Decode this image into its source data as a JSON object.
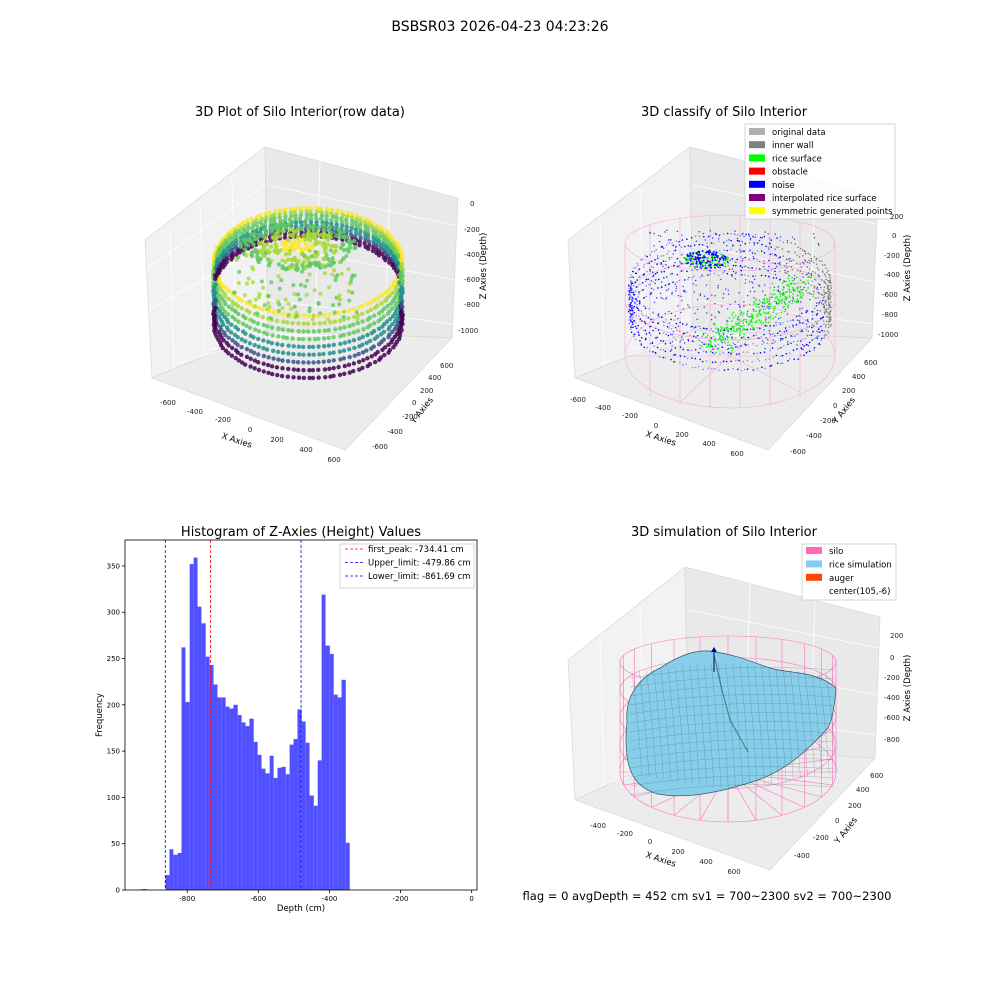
{
  "suptitle": "BSBSR03 2026-04-23 04:23:26",
  "panel1": {
    "title": "3D Plot of Silo Interior(row data)",
    "xlabel": "X Axies",
    "ylabel": "Y Axies",
    "zlabel": "Z Axies (Depth)",
    "xticks": [
      "-600",
      "-400",
      "-200",
      "0",
      "200",
      "400",
      "600"
    ],
    "yticks": [
      "-600",
      "-400",
      "-200",
      "0",
      "200",
      "400",
      "600"
    ],
    "zticks": [
      "0",
      "-200",
      "-400",
      "-600",
      "-800",
      "-1000"
    ]
  },
  "panel2": {
    "title": "3D classify of Silo Interior",
    "xlabel": "X Axies",
    "ylabel": "Y Axies",
    "zlabel": "Z Axies (Depth)",
    "xticks": [
      "-600",
      "-400",
      "-200",
      "0",
      "200",
      "400",
      "600"
    ],
    "yticks": [
      "-600",
      "-400",
      "-200",
      "0",
      "200",
      "400",
      "600"
    ],
    "zticks": [
      "200",
      "0",
      "-200",
      "-400",
      "-600",
      "-800",
      "-1000"
    ],
    "legend": [
      {
        "label": "original data",
        "color": "#b0b0b0"
      },
      {
        "label": "inner wall",
        "color": "#808080"
      },
      {
        "label": "rice surface",
        "color": "#00ff00"
      },
      {
        "label": "obstacle",
        "color": "#ff0000"
      },
      {
        "label": "noise",
        "color": "#0000ff"
      },
      {
        "label": "interpolated rice surface",
        "color": "#800080"
      },
      {
        "label": "symmetric generated points",
        "color": "#ffff00"
      }
    ]
  },
  "panel4": {
    "title": "3D simulation of Silo Interior",
    "xlabel": "X Axies",
    "ylabel": "Y Axies",
    "zlabel": "Z Axies (Depth)",
    "xticks": [
      "-400",
      "-200",
      "0",
      "200",
      "400",
      "600"
    ],
    "yticks": [
      "-400",
      "-200",
      "0",
      "200",
      "400",
      "600"
    ],
    "zticks": [
      "200",
      "0",
      "-200",
      "-400",
      "-600",
      "-800"
    ],
    "legend": [
      {
        "label": "silo",
        "color": "#ff69b4"
      },
      {
        "label": "rice simulation",
        "color": "#87ceeb"
      },
      {
        "label": "auger",
        "color": "#ff4500"
      },
      {
        "label": "center(105,-6)",
        "color": ""
      }
    ]
  },
  "flag_text": "flag = 0     avgDepth = 452 cm  sv1 = 700~2300  sv2 = 700~2300",
  "chart_data": {
    "type": "bar",
    "title": "Histogram of Z-Axies (Height) Values",
    "xlabel": "Depth (cm)",
    "ylabel": "Frequency",
    "bar_color": "#5050ff",
    "xlim": [
      -975,
      15
    ],
    "ylim": [
      0,
      378
    ],
    "xticks": [
      -800,
      -600,
      -400,
      -200,
      0
    ],
    "yticks": [
      0,
      50,
      100,
      150,
      200,
      250,
      300,
      350
    ],
    "bins": [
      {
        "x0": -928,
        "x1": -913,
        "count": 1
      },
      {
        "x0": -861,
        "x1": -850,
        "count": 16
      },
      {
        "x0": -850,
        "x1": -839,
        "count": 44
      },
      {
        "x0": -839,
        "x1": -827,
        "count": 38
      },
      {
        "x0": -827,
        "x1": -816,
        "count": 40
      },
      {
        "x0": -816,
        "x1": -805,
        "count": 262
      },
      {
        "x0": -805,
        "x1": -793,
        "count": 203
      },
      {
        "x0": -793,
        "x1": -782,
        "count": 352
      },
      {
        "x0": -782,
        "x1": -771,
        "count": 359
      },
      {
        "x0": -771,
        "x1": -760,
        "count": 306
      },
      {
        "x0": -760,
        "x1": -748,
        "count": 288
      },
      {
        "x0": -748,
        "x1": -737,
        "count": 252
      },
      {
        "x0": -737,
        "x1": -726,
        "count": 243
      },
      {
        "x0": -726,
        "x1": -715,
        "count": 222
      },
      {
        "x0": -715,
        "x1": -703,
        "count": 208
      },
      {
        "x0": -703,
        "x1": -692,
        "count": 208
      },
      {
        "x0": -692,
        "x1": -681,
        "count": 198
      },
      {
        "x0": -681,
        "x1": -670,
        "count": 196
      },
      {
        "x0": -670,
        "x1": -658,
        "count": 200
      },
      {
        "x0": -658,
        "x1": -647,
        "count": 189
      },
      {
        "x0": -647,
        "x1": -636,
        "count": 181
      },
      {
        "x0": -636,
        "x1": -625,
        "count": 177
      },
      {
        "x0": -625,
        "x1": -613,
        "count": 185
      },
      {
        "x0": -613,
        "x1": -602,
        "count": 160
      },
      {
        "x0": -602,
        "x1": -591,
        "count": 146
      },
      {
        "x0": -591,
        "x1": -580,
        "count": 131
      },
      {
        "x0": -580,
        "x1": -568,
        "count": 126
      },
      {
        "x0": -568,
        "x1": -557,
        "count": 145
      },
      {
        "x0": -557,
        "x1": -546,
        "count": 121
      },
      {
        "x0": -546,
        "x1": -535,
        "count": 132
      },
      {
        "x0": -535,
        "x1": -523,
        "count": 133
      },
      {
        "x0": -523,
        "x1": -512,
        "count": 125
      },
      {
        "x0": -512,
        "x1": -501,
        "count": 157
      },
      {
        "x0": -501,
        "x1": -490,
        "count": 163
      },
      {
        "x0": -490,
        "x1": -478,
        "count": 195
      },
      {
        "x0": -478,
        "x1": -467,
        "count": 182
      },
      {
        "x0": -467,
        "x1": -456,
        "count": 159
      },
      {
        "x0": -456,
        "x1": -444,
        "count": 102
      },
      {
        "x0": -444,
        "x1": -433,
        "count": 91
      },
      {
        "x0": -433,
        "x1": -422,
        "count": 140
      },
      {
        "x0": -422,
        "x1": -411,
        "count": 319
      },
      {
        "x0": -411,
        "x1": -399,
        "count": 264
      },
      {
        "x0": -399,
        "x1": -388,
        "count": 255
      },
      {
        "x0": -388,
        "x1": -377,
        "count": 211
      },
      {
        "x0": -377,
        "x1": -366,
        "count": 208
      },
      {
        "x0": -366,
        "x1": -354,
        "count": 227
      },
      {
        "x0": -354,
        "x1": -343,
        "count": 51
      }
    ],
    "vlines": [
      {
        "label": "first_peak: -734.41 cm",
        "x": -734.41,
        "color": "#ff0000"
      },
      {
        "label": "Upper_limit: -479.86 cm",
        "x": -479.86,
        "color": "#0000ff"
      },
      {
        "label": "Lower_limit: -861.69 cm",
        "x": -861.69,
        "color": "#0000ff"
      }
    ]
  }
}
